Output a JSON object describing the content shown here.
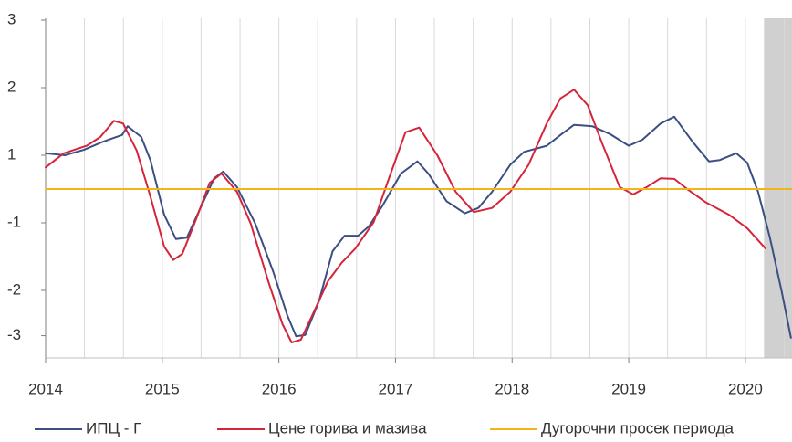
{
  "chart_data": {
    "type": "line",
    "xlim": [
      2014,
      2020.4
    ],
    "xticks": [
      2014,
      2015,
      2016,
      2017,
      2018,
      2019,
      2020
    ],
    "xgrid": [
      2014,
      2014.333,
      2014.667,
      2015,
      2015.333,
      2015.667,
      2016,
      2016.333,
      2016.667,
      2017,
      2017.333,
      2017.667,
      2018,
      2018.333,
      2018.667,
      2019,
      2019.333,
      2019.667,
      2020,
      2020.333
    ],
    "ylim": [
      -2,
      3
    ],
    "yticks": [
      3,
      2,
      1,
      {
        "value": 0,
        "label": "-1"
      },
      {
        "value": -1,
        "label": "-2"
      },
      {
        "value": -1.67,
        "label": "-3"
      }
    ],
    "shaded_region": [
      2020.16,
      2020.4
    ],
    "series": [
      {
        "name": "ИПЦ - Г",
        "color": "#3b4f82",
        "x": [
          2014,
          2014.164,
          2014.328,
          2014.492,
          2014.656,
          2014.703,
          2014.82,
          2014.898,
          2015.016,
          2015.117,
          2015.211,
          2015.328,
          2015.445,
          2015.523,
          2015.641,
          2015.797,
          2015.953,
          2016.07,
          2016.148,
          2016.227,
          2016.344,
          2016.461,
          2016.563,
          2016.68,
          2016.773,
          2016.891,
          2017.047,
          2017.188,
          2017.281,
          2017.438,
          2017.594,
          2017.711,
          2017.828,
          2017.984,
          2018.102,
          2018.297,
          2018.414,
          2018.531,
          2018.688,
          2018.844,
          2019.0,
          2019.117,
          2019.273,
          2019.391,
          2019.547,
          2019.688,
          2019.781,
          2019.922,
          2020.016,
          2020.109,
          2020.211,
          2020.313,
          2020.391
        ],
        "values": [
          1.03,
          1.0,
          1.08,
          1.2,
          1.3,
          1.43,
          1.27,
          0.93,
          0.12,
          -0.24,
          -0.22,
          0.22,
          0.66,
          0.76,
          0.53,
          -0.01,
          -0.73,
          -1.36,
          -1.68,
          -1.66,
          -1.16,
          -0.42,
          -0.19,
          -0.19,
          -0.05,
          0.26,
          0.73,
          0.91,
          0.73,
          0.32,
          0.14,
          0.22,
          0.46,
          0.86,
          1.05,
          1.14,
          1.3,
          1.45,
          1.43,
          1.31,
          1.14,
          1.23,
          1.47,
          1.57,
          1.2,
          0.91,
          0.93,
          1.03,
          0.89,
          0.46,
          -0.22,
          -1.03,
          -1.7
        ]
      },
      {
        "name": "Цене горива и мазива",
        "color": "#d6243a",
        "x": [
          2014,
          2014.156,
          2014.352,
          2014.469,
          2014.586,
          2014.664,
          2014.781,
          2014.898,
          2015.016,
          2015.094,
          2015.172,
          2015.289,
          2015.406,
          2015.508,
          2015.641,
          2015.758,
          2015.914,
          2016.031,
          2016.109,
          2016.188,
          2016.305,
          2016.422,
          2016.539,
          2016.656,
          2016.813,
          2016.93,
          2017.086,
          2017.203,
          2017.359,
          2017.516,
          2017.672,
          2017.828,
          2017.984,
          2018.141,
          2018.297,
          2018.414,
          2018.531,
          2018.648,
          2018.766,
          2018.922,
          2019.039,
          2019.156,
          2019.273,
          2019.391,
          2019.508,
          2019.664,
          2019.859,
          2020.016,
          2020.172
        ],
        "values": [
          0.82,
          1.03,
          1.14,
          1.27,
          1.51,
          1.47,
          1.07,
          0.39,
          -0.35,
          -0.55,
          -0.46,
          0.05,
          0.59,
          0.73,
          0.46,
          -0.01,
          -0.89,
          -1.5,
          -1.77,
          -1.73,
          -1.3,
          -0.86,
          -0.59,
          -0.38,
          0.01,
          0.59,
          1.34,
          1.41,
          1.0,
          0.46,
          0.16,
          0.22,
          0.46,
          0.86,
          1.47,
          1.84,
          1.97,
          1.74,
          1.2,
          0.53,
          0.42,
          0.53,
          0.66,
          0.65,
          0.49,
          0.3,
          0.12,
          -0.08,
          -0.38
        ]
      },
      {
        "name": "Дугорочни просек периода",
        "color": "#f2b418",
        "x": [
          2014,
          2020.4
        ],
        "values": [
          0.5,
          0.5
        ]
      }
    ]
  }
}
